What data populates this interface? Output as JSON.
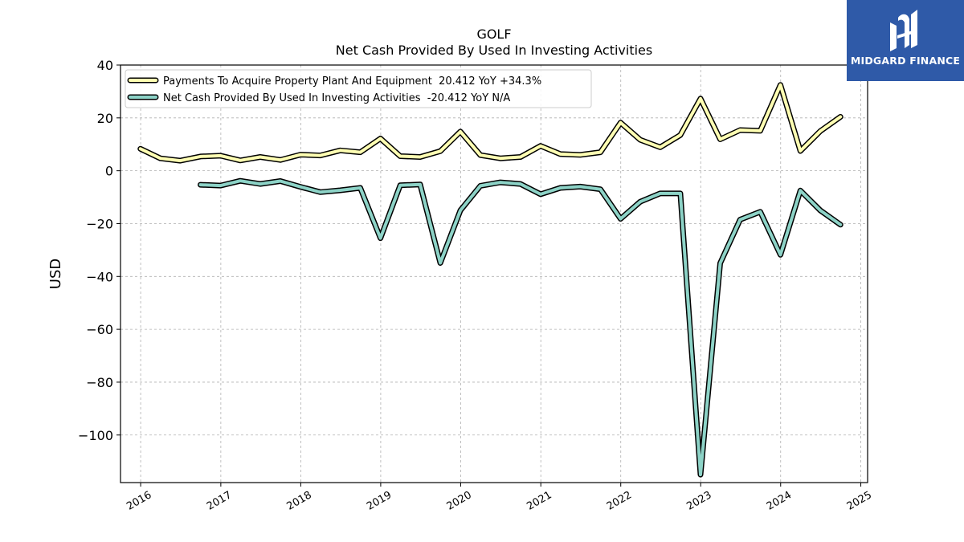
{
  "chart_data": {
    "type": "line",
    "title": "GOLF",
    "subtitle": "Net Cash Provided By Used In Investing Activities",
    "ylabel": "USD",
    "xlabel": "",
    "ylim": [
      -118,
      40
    ],
    "xlim": [
      "2015-10-01",
      "2025-02-01"
    ],
    "y_ticks": [
      40,
      20,
      0,
      -20,
      -40,
      -60,
      -80,
      -100
    ],
    "y_tick_labels": [
      "40",
      "20",
      "0",
      "−20",
      "−40",
      "−60",
      "−80",
      "−100"
    ],
    "x_ticks": [
      "2016-01-01",
      "2017-01-01",
      "2018-01-01",
      "2019-01-01",
      "2020-01-01",
      "2021-01-01",
      "2022-01-01",
      "2023-01-01",
      "2024-01-01",
      "2025-01-01"
    ],
    "x_tick_labels": [
      "2016",
      "2017",
      "2018",
      "2019",
      "2020",
      "2021",
      "2022",
      "2023",
      "2024",
      "2025"
    ],
    "grid": true,
    "legend_position": "top-left",
    "series": [
      {
        "name": "Payments To Acquire Property Plant And Equipment  20.412 YoY +34.3%",
        "color": "#ffffb3",
        "x": [
          "2015-12-31",
          "2016-03-31",
          "2016-06-30",
          "2016-09-30",
          "2016-12-31",
          "2017-03-31",
          "2017-06-30",
          "2017-09-30",
          "2017-12-31",
          "2018-03-31",
          "2018-06-30",
          "2018-09-30",
          "2018-12-31",
          "2019-03-31",
          "2019-06-30",
          "2019-09-30",
          "2019-12-31",
          "2020-03-31",
          "2020-06-30",
          "2020-09-30",
          "2020-12-31",
          "2021-03-31",
          "2021-06-30",
          "2021-09-30",
          "2021-12-31",
          "2022-03-31",
          "2022-06-30",
          "2022-09-30",
          "2022-12-31",
          "2023-03-31",
          "2023-06-30",
          "2023-09-30",
          "2023-12-31",
          "2024-03-31",
          "2024-06-30",
          "2024-09-30"
        ],
        "values": [
          8.3,
          4.7,
          3.8,
          5.4,
          5.7,
          3.9,
          5.2,
          4.1,
          6.1,
          5.8,
          7.7,
          7.0,
          12.2,
          5.5,
          5.2,
          7.4,
          14.8,
          5.9,
          4.7,
          5.2,
          9.4,
          6.3,
          6.0,
          7.0,
          18.2,
          11.7,
          8.9,
          13.5,
          27.3,
          11.9,
          15.4,
          15.1,
          32.5,
          7.5,
          15.0,
          20.4
        ]
      },
      {
        "name": "Net Cash Provided By Used In Investing Activities  -20.412 YoY N/A",
        "color": "#8dd3c7",
        "x": [
          "2016-09-30",
          "2016-12-31",
          "2017-03-31",
          "2017-06-30",
          "2017-09-30",
          "2017-12-31",
          "2018-03-31",
          "2018-06-30",
          "2018-09-30",
          "2018-12-31",
          "2019-03-31",
          "2019-06-30",
          "2019-09-30",
          "2019-12-31",
          "2020-03-31",
          "2020-06-30",
          "2020-09-30",
          "2020-12-31",
          "2021-03-31",
          "2021-06-30",
          "2021-09-30",
          "2021-12-31",
          "2022-03-31",
          "2022-06-30",
          "2022-09-30",
          "2022-12-31",
          "2023-03-31",
          "2023-06-30",
          "2023-09-30",
          "2023-12-31",
          "2024-03-31",
          "2024-06-30",
          "2024-09-30"
        ],
        "values": [
          -5.3,
          -5.6,
          -3.8,
          -5.0,
          -3.9,
          -6.1,
          -8.1,
          -7.4,
          -6.5,
          -25.5,
          -5.5,
          -5.2,
          -34.9,
          -15.0,
          -5.7,
          -4.4,
          -5.0,
          -8.9,
          -6.5,
          -6.0,
          -7.0,
          -18.2,
          -11.7,
          -8.6,
          -8.6,
          -115.0,
          -35.0,
          -18.5,
          -15.5,
          -31.8,
          -7.5,
          -15.0,
          -20.4
        ]
      }
    ]
  },
  "logo": {
    "text": "MIDGARD FINANCE",
    "background": "#2f5aa8"
  }
}
